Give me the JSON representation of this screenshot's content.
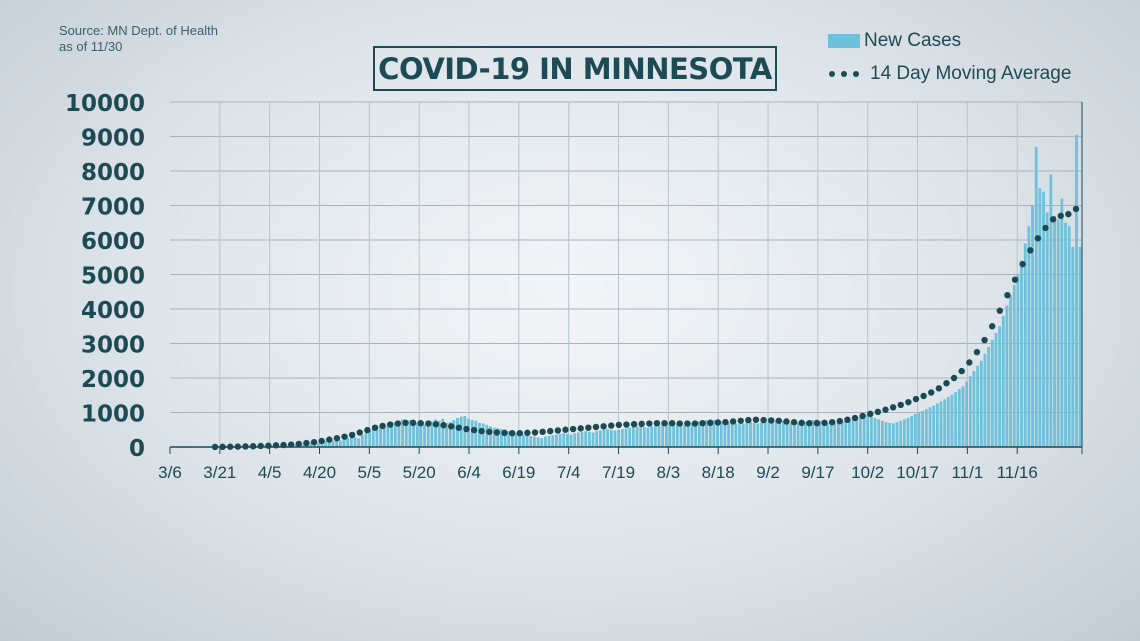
{
  "source_note": {
    "line1": "Source: MN Dept. of Health",
    "line2": "as of 11/30"
  },
  "chart_data": {
    "type": "bar",
    "title": "COVID-19 IN MINNESOTA",
    "xlabel": "",
    "ylabel": "",
    "ylim": [
      0,
      10000
    ],
    "yticks": [
      "0",
      "1000",
      "2000",
      "3000",
      "4000",
      "5000",
      "6000",
      "7000",
      "8000",
      "9000",
      "10000"
    ],
    "xtick_labels": [
      "3/6",
      "3/21",
      "4/5",
      "4/20",
      "5/5",
      "5/20",
      "6/4",
      "6/19",
      "7/4",
      "7/19",
      "8/3",
      "8/18",
      "9/2",
      "9/17",
      "10/2",
      "10/17",
      "11/1",
      "11/16"
    ],
    "grid": true,
    "legend_position": "top-right",
    "colors": {
      "bars": "#6ec1da",
      "average": "#1c4a52",
      "axis": "#1d4a55"
    },
    "x_start": "3/6",
    "x_end": "11/30",
    "series": [
      {
        "name": "New Cases",
        "kind": "bar",
        "values": [
          1,
          2,
          3,
          4,
          5,
          6,
          5,
          7,
          10,
          15,
          8,
          12,
          18,
          20,
          24,
          30,
          28,
          24,
          26,
          28,
          35,
          38,
          32,
          26,
          40,
          48,
          55,
          50,
          60,
          62,
          68,
          75,
          80,
          72,
          85,
          100,
          95,
          105,
          110,
          95,
          120,
          150,
          170,
          130,
          180,
          210,
          190,
          220,
          260,
          300,
          280,
          250,
          350,
          420,
          480,
          520,
          580,
          620,
          560,
          600,
          680,
          720,
          760,
          800,
          740,
          780,
          720,
          700,
          620,
          650,
          600,
          740,
          800,
          760,
          820,
          700,
          720,
          780,
          840,
          880,
          900,
          820,
          780,
          760,
          700,
          680,
          640,
          600,
          560,
          540,
          520,
          500,
          460,
          420,
          400,
          380,
          360,
          340,
          320,
          300,
          280,
          260,
          300,
          320,
          340,
          360,
          380,
          400,
          380,
          360,
          400,
          420,
          440,
          460,
          440,
          420,
          460,
          480,
          500,
          520,
          500,
          480,
          500,
          520,
          540,
          560,
          580,
          600,
          620,
          580,
          560,
          600,
          620,
          640,
          660,
          680,
          700,
          720,
          680,
          660,
          640,
          680,
          700,
          720,
          740,
          760,
          780,
          800,
          780,
          760,
          740,
          720,
          700,
          720,
          680,
          660,
          680,
          700,
          720,
          700,
          680,
          700,
          720,
          740,
          760,
          780,
          800,
          760,
          720,
          700,
          680,
          700,
          720,
          740,
          760,
          780,
          800,
          760,
          720,
          700,
          680,
          700,
          720,
          740,
          760,
          780,
          800,
          820,
          860,
          900,
          920,
          880,
          840,
          800,
          760,
          720,
          700,
          680,
          720,
          760,
          800,
          840,
          900,
          960,
          1000,
          1050,
          1100,
          1150,
          1200,
          1260,
          1320,
          1380,
          1450,
          1520,
          1600,
          1680,
          1760,
          1900,
          2050,
          2200,
          2350,
          2500,
          2700,
          2900,
          3100,
          3300,
          3500,
          3800,
          4100,
          4400,
          4700,
          5000,
          5400,
          5900,
          6400,
          7000,
          8700,
          7500,
          7400,
          6800,
          7900,
          6700,
          6600,
          7200,
          6500,
          6400,
          5800,
          9050,
          5800
        ],
        "note": "Daily values read approximately from bar heights"
      },
      {
        "name": "14 Day Moving Average",
        "kind": "dotted-line",
        "values": [
          2,
          4,
          8,
          12,
          16,
          22,
          30,
          38,
          48,
          58,
          70,
          90,
          115,
          140,
          175,
          215,
          255,
          300,
          350,
          420,
          490,
          560,
          610,
          650,
          680,
          700,
          700,
          690,
          680,
          660,
          630,
          600,
          560,
          520,
          490,
          460,
          440,
          420,
          410,
          400,
          400,
          410,
          420,
          440,
          460,
          480,
          500,
          520,
          540,
          560,
          580,
          600,
          620,
          640,
          650,
          660,
          670,
          680,
          690,
          690,
          690,
          680,
          680,
          680,
          690,
          700,
          710,
          720,
          740,
          760,
          780,
          790,
          780,
          770,
          760,
          740,
          720,
          700,
          690,
          690,
          700,
          720,
          750,
          790,
          840,
          900,
          960,
          1020,
          1080,
          1150,
          1220,
          1300,
          1390,
          1480,
          1580,
          1700,
          1850,
          2000,
          2200,
          2450,
          2750,
          3100,
          3500,
          3950,
          4400,
          4850,
          5300,
          5700,
          6050,
          6350,
          6600,
          6700,
          6750,
          6900
        ]
      }
    ]
  }
}
